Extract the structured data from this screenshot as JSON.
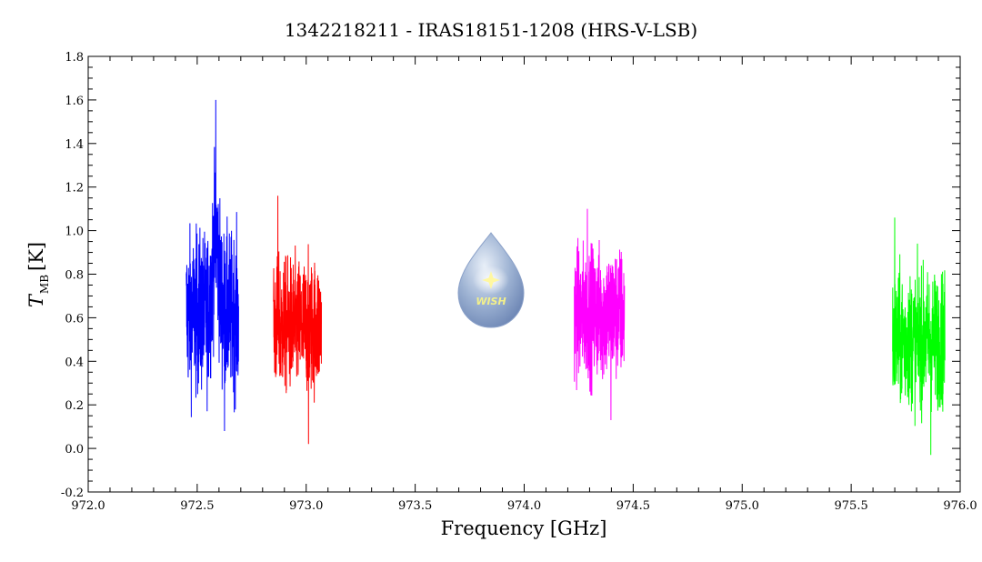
{
  "chart_data": {
    "type": "line",
    "title": "1342218211 - IRAS18151-1208 (HRS-V-LSB)",
    "xlabel": "Frequency [GHz]",
    "ylabel_main": "T",
    "ylabel_sub": "MB",
    "ylabel_unit": "[K]",
    "xlim": [
      972.0,
      976.0
    ],
    "ylim": [
      -0.2,
      1.8
    ],
    "xticks": [
      972.0,
      972.5,
      973.0,
      973.5,
      974.0,
      974.5,
      975.0,
      975.5,
      976.0
    ],
    "xtick_labels": [
      "972.0",
      "972.5",
      "973.0",
      "973.5",
      "974.0",
      "974.5",
      "975.0",
      "975.5",
      "976.0"
    ],
    "yticks": [
      -0.2,
      0.0,
      0.2,
      0.4,
      0.6,
      0.8,
      1.0,
      1.2,
      1.4,
      1.6,
      1.8
    ],
    "ytick_labels": [
      "-0.2",
      "0.0",
      "0.2",
      "0.4",
      "0.6",
      "0.8",
      "1.0",
      "1.2",
      "1.4",
      "1.6",
      "1.8"
    ],
    "grid": false,
    "series": [
      {
        "color": "#0000ff",
        "x_range": [
          972.45,
          972.69
        ],
        "mean": 0.62,
        "spread": 0.36,
        "peak_x": 972.585,
        "peak_y": 1.6,
        "min_y": 0.08,
        "max_y": 1.6
      },
      {
        "color": "#ff0000",
        "x_range": [
          972.85,
          973.07
        ],
        "mean": 0.56,
        "spread": 0.3,
        "peak_x": 972.87,
        "peak_y": 1.16,
        "min_y": 0.02,
        "max_y": 1.16
      },
      {
        "color": "#ff00ff",
        "x_range": [
          974.23,
          974.46
        ],
        "mean": 0.62,
        "spread": 0.3,
        "peak_x": 974.29,
        "peak_y": 1.1,
        "min_y": 0.13,
        "max_y": 1.1
      },
      {
        "color": "#00ff00",
        "x_range": [
          975.69,
          975.93
        ],
        "mean": 0.5,
        "spread": 0.3,
        "peak_x": 975.7,
        "peak_y": 1.06,
        "min_y": -0.03,
        "max_y": 1.06
      }
    ]
  },
  "logo": {
    "text": "WISH",
    "icon": "water-drop-star-icon"
  }
}
